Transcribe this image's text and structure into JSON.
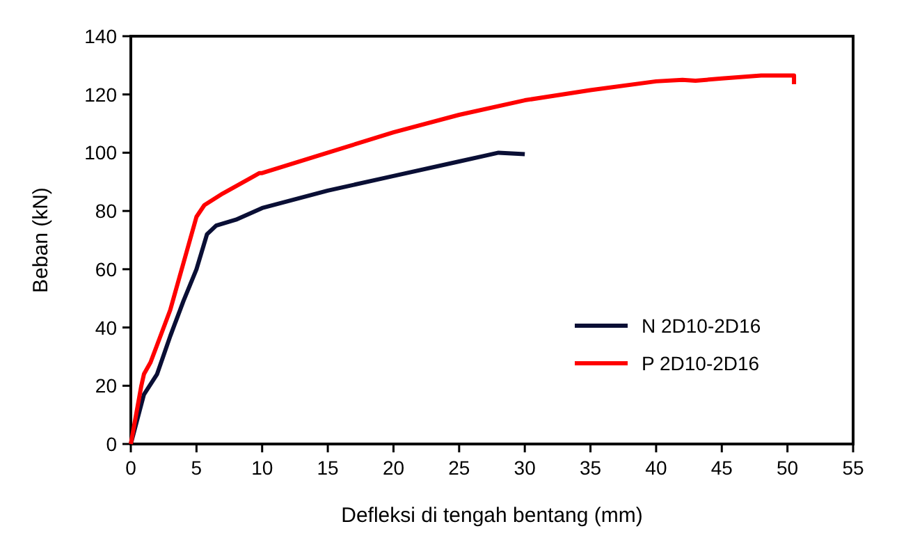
{
  "chart_data": {
    "type": "line",
    "xlabel": "Defleksi di tengah bentang (mm)",
    "ylabel": "Beban (kN)",
    "xlim": [
      0,
      55
    ],
    "xticks": [
      0,
      5,
      10,
      15,
      20,
      25,
      30,
      35,
      40,
      45,
      50,
      55
    ],
    "ylim": [
      0,
      140
    ],
    "yticks": [
      0,
      20,
      40,
      60,
      80,
      100,
      120,
      140
    ],
    "grid": false,
    "legend": "bottom right",
    "line_style": "solid",
    "series": [
      {
        "name": "N 2D10-2D16",
        "color": "#0a0f35",
        "x": [
          0,
          1,
          2,
          3,
          4,
          5,
          5.8,
          6.5,
          8,
          10,
          15,
          20,
          25,
          27,
          28,
          30
        ],
        "values": [
          0,
          17,
          24,
          37,
          49,
          60,
          72,
          75,
          77,
          81,
          87,
          92,
          97,
          99,
          100,
          99.5
        ]
      },
      {
        "name": "P 2D10-2D16",
        "color": "#ff0000",
        "x": [
          0,
          0.8,
          1,
          1.5,
          2,
          3,
          4,
          5,
          5.6,
          7,
          9,
          9.8,
          10,
          15,
          20,
          25,
          30,
          35,
          40,
          42,
          43,
          45,
          48,
          50.5,
          50.5
        ],
        "values": [
          0,
          20,
          24,
          28,
          34,
          46,
          62,
          78,
          82,
          86,
          91,
          93,
          93,
          100,
          107,
          113,
          118,
          121.5,
          124.5,
          125,
          124.7,
          125.5,
          126.5,
          126.5,
          123.5
        ]
      }
    ]
  }
}
